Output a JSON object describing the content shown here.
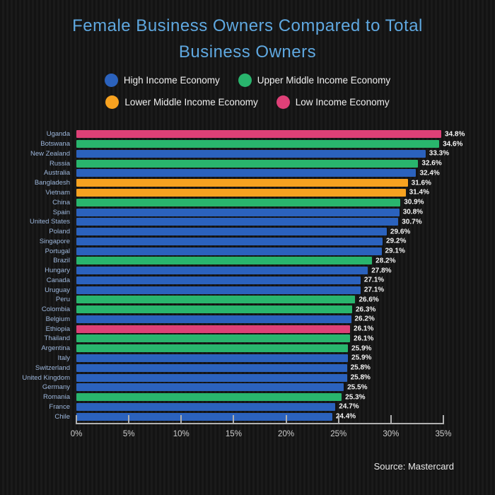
{
  "title": "Female Business Owners Compared to Total Business Owners",
  "source": "Source: Mastercard",
  "colors": {
    "high": "#2b62bd",
    "upper_middle": "#29b56d",
    "lower_middle": "#f7a220",
    "low": "#de4077",
    "title_text": "#5fa8e0",
    "country_label": "#9db7dc",
    "value_label": "#f5f5f5",
    "axis": "#b0b0b0",
    "background": "#151515"
  },
  "legend": [
    {
      "label": "High Income Economy",
      "category": "high"
    },
    {
      "label": "Upper Middle Income Economy",
      "category": "upper_middle"
    },
    {
      "label": "Lower Middle Income Economy",
      "category": "lower_middle"
    },
    {
      "label": "Low Income Economy",
      "category": "low"
    }
  ],
  "chart_data": {
    "type": "bar",
    "orientation": "horizontal",
    "title": "Female Business Owners Compared to Total Business Owners",
    "xlabel": "",
    "ylabel": "",
    "xlim": [
      0,
      35
    ],
    "x_tick_labels": [
      "0%",
      "5%",
      "10%",
      "15%",
      "20%",
      "25%",
      "30%",
      "35%"
    ],
    "grid": false,
    "legend_position": "top",
    "rows": [
      {
        "country": "Uganda",
        "value": 34.8,
        "label": "34.8%",
        "category": "low"
      },
      {
        "country": "Botswana",
        "value": 34.6,
        "label": "34.6%",
        "category": "upper_middle"
      },
      {
        "country": "New Zealand",
        "value": 33.3,
        "label": "33.3%",
        "category": "high"
      },
      {
        "country": "Russia",
        "value": 32.6,
        "label": "32.6%",
        "category": "upper_middle"
      },
      {
        "country": "Australia",
        "value": 32.4,
        "label": "32.4%",
        "category": "high"
      },
      {
        "country": "Bangladesh",
        "value": 31.6,
        "label": "31.6%",
        "category": "lower_middle"
      },
      {
        "country": "Vietnam",
        "value": 31.4,
        "label": "31.4%",
        "category": "lower_middle"
      },
      {
        "country": "China",
        "value": 30.9,
        "label": "30.9%",
        "category": "upper_middle"
      },
      {
        "country": "Spain",
        "value": 30.8,
        "label": "30.8%",
        "category": "high"
      },
      {
        "country": "United States",
        "value": 30.7,
        "label": "30.7%",
        "category": "high"
      },
      {
        "country": "Poland",
        "value": 29.6,
        "label": "29.6%",
        "category": "high"
      },
      {
        "country": "Singapore",
        "value": 29.2,
        "label": "29.2%",
        "category": "high"
      },
      {
        "country": "Portugal",
        "value": 29.1,
        "label": "29.1%",
        "category": "high"
      },
      {
        "country": "Brazil",
        "value": 28.2,
        "label": "28.2%",
        "category": "upper_middle"
      },
      {
        "country": "Hungary",
        "value": 27.8,
        "label": "27.8%",
        "category": "high"
      },
      {
        "country": "Canada",
        "value": 27.1,
        "label": "27.1%",
        "category": "high"
      },
      {
        "country": "Uruguay",
        "value": 27.1,
        "label": "27.1%",
        "category": "high"
      },
      {
        "country": "Peru",
        "value": 26.6,
        "label": "26.6%",
        "category": "upper_middle"
      },
      {
        "country": "Colombia",
        "value": 26.3,
        "label": "26.3%",
        "category": "upper_middle"
      },
      {
        "country": "Belgium",
        "value": 26.2,
        "label": "26.2%",
        "category": "high"
      },
      {
        "country": "Ethiopia",
        "value": 26.1,
        "label": "26.1%",
        "category": "low"
      },
      {
        "country": "Thailand",
        "value": 26.1,
        "label": "26.1%",
        "category": "upper_middle"
      },
      {
        "country": "Argentina",
        "value": 25.9,
        "label": "25.9%",
        "category": "upper_middle"
      },
      {
        "country": "Italy",
        "value": 25.9,
        "label": "25.9%",
        "category": "high"
      },
      {
        "country": "Switzerland",
        "value": 25.8,
        "label": "25.8%",
        "category": "high"
      },
      {
        "country": "United Kingdom",
        "value": 25.8,
        "label": "25.8%",
        "category": "high"
      },
      {
        "country": "Germany",
        "value": 25.5,
        "label": "25.5%",
        "category": "high"
      },
      {
        "country": "Romania",
        "value": 25.3,
        "label": "25.3%",
        "category": "upper_middle"
      },
      {
        "country": "France",
        "value": 24.7,
        "label": "24.7%",
        "category": "high"
      },
      {
        "country": "Chile",
        "value": 24.4,
        "label": "24.4%",
        "category": "high"
      }
    ]
  }
}
